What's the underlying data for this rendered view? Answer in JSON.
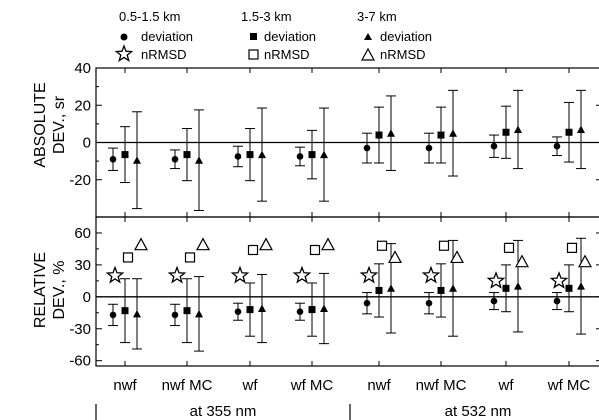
{
  "legend": {
    "groups": [
      {
        "range": "0.5-1.5 km",
        "deviation": "deviation",
        "nrmsd": "nRMSD"
      },
      {
        "range": "1.5-3 km",
        "deviation": "deviation",
        "nrmsd": "nRMSD"
      },
      {
        "range": "3-7 km",
        "deviation": "deviation",
        "nrmsd": "nRMSD"
      }
    ]
  },
  "chart_data": [
    {
      "type": "scatter",
      "ylabel_lines": [
        "ABSOLUTE",
        "DEV., sr"
      ],
      "ylim": [
        -40,
        40
      ],
      "yticks": [
        -20,
        0,
        20,
        40
      ],
      "categories": [
        "nwf",
        "nwf MC",
        "wf",
        "wf MC",
        "nwf",
        "nwf MC",
        "wf",
        "wf MC"
      ],
      "series": [
        {
          "name": "0.5-1.5 km deviation",
          "marker": "circle",
          "values": [
            -9,
            -9,
            -7.5,
            -7.5,
            -3,
            -3,
            -2,
            -2
          ],
          "error": [
            6,
            5,
            5.5,
            5,
            8,
            8,
            6,
            5
          ]
        },
        {
          "name": "1.5-3 km deviation",
          "marker": "square",
          "values": [
            -6.5,
            -6.5,
            -6.5,
            -6.5,
            4,
            4,
            5.5,
            5.5
          ],
          "error": [
            15,
            14,
            14,
            13,
            15,
            15,
            14,
            16
          ]
        },
        {
          "name": "3-7 km deviation",
          "marker": "triangle",
          "values": [
            -9.5,
            -9.5,
            -6.5,
            -6.5,
            5,
            5,
            7,
            7
          ],
          "error": [
            26,
            27,
            25,
            25,
            20,
            23,
            21,
            21
          ]
        }
      ]
    },
    {
      "type": "scatter",
      "ylabel_lines": [
        "RELATIVE",
        "DEV., %"
      ],
      "ylim": [
        -65,
        75
      ],
      "yticks": [
        -60,
        -30,
        0,
        30,
        60
      ],
      "categories": [
        "nwf",
        "nwf MC",
        "wf",
        "wf MC",
        "nwf",
        "nwf MC",
        "wf",
        "wf MC"
      ],
      "series": [
        {
          "name": "0.5-1.5 km deviation",
          "marker": "circle",
          "values": [
            -17,
            -17,
            -14,
            -14,
            -6,
            -6,
            -4,
            -4
          ],
          "error": [
            10,
            10,
            8,
            8,
            10,
            10,
            8,
            8
          ]
        },
        {
          "name": "1.5-3 km deviation",
          "marker": "square",
          "values": [
            -13,
            -13,
            -12,
            -12,
            6,
            6,
            8,
            8
          ],
          "error": [
            30,
            30,
            25,
            25,
            25,
            25,
            22,
            22
          ]
        },
        {
          "name": "3-7 km deviation",
          "marker": "triangle",
          "values": [
            -16,
            -16,
            -11,
            -11,
            8,
            8,
            10,
            10
          ],
          "error": [
            33,
            35,
            32,
            33,
            42,
            45,
            43,
            45
          ]
        },
        {
          "name": "0.5-1.5 km nRMSD",
          "marker": "star",
          "values": [
            20,
            20,
            20,
            20,
            20,
            20,
            15,
            15
          ]
        },
        {
          "name": "1.5-3 km nRMSD",
          "marker": "open-square",
          "values": [
            37,
            37,
            44,
            44,
            48,
            48,
            46,
            46
          ]
        },
        {
          "name": "3-7 km nRMSD",
          "marker": "open-triangle",
          "values": [
            49,
            49,
            49,
            49,
            37,
            37,
            33,
            33
          ]
        }
      ]
    }
  ],
  "groups": [
    {
      "label": "at 355 nm"
    },
    {
      "label": "at 532 nm"
    }
  ]
}
